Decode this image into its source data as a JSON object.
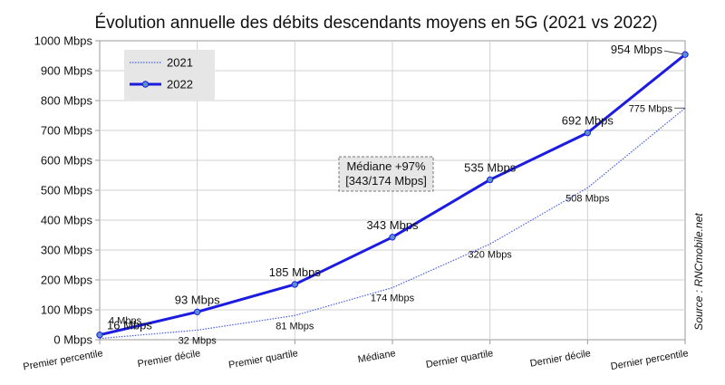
{
  "chart_data": {
    "type": "line",
    "title": "Évolution annuelle des débits descendants moyens en 5G (2021 vs 2022)",
    "categories": [
      "Premier percentile",
      "Premier décile",
      "Premier quartile",
      "Médiane",
      "Dernier quartile",
      "Dernier décile",
      "Dernier percentile"
    ],
    "ylim": [
      0,
      1000
    ],
    "yticks": [
      0,
      100,
      200,
      300,
      400,
      500,
      600,
      700,
      800,
      900,
      1000
    ],
    "ytick_labels": [
      "0 Mbps",
      "100 Mbps",
      "200 Mbps",
      "300 Mbps",
      "400 Mbps",
      "500 Mbps",
      "600 Mbps",
      "700 Mbps",
      "800 Mbps",
      "900 Mbps",
      "1000 Mbps"
    ],
    "grid": true,
    "legend_position": "top-left",
    "series": [
      {
        "name": "2021",
        "values": [
          4,
          32,
          81,
          174,
          320,
          508,
          775
        ],
        "labels": [
          "4 Mbps",
          "32 Mbps",
          "81 Mbps",
          "174 Mbps",
          "320 Mbps",
          "508 Mbps",
          "775 Mbps"
        ],
        "color": "#4a5fe0",
        "style": "dotted"
      },
      {
        "name": "2022",
        "values": [
          16,
          93,
          185,
          343,
          535,
          692,
          954
        ],
        "labels": [
          "16 Mbps",
          "93 Mbps",
          "185 Mbps",
          "343 Mbps",
          "535 Mbps",
          "692 Mbps",
          "954 Mbps"
        ],
        "color": "#1c1ce0",
        "style": "solid-markers"
      }
    ],
    "annotation": {
      "line1": "Médiane +97%",
      "line2": "[343/174 Mbps]"
    },
    "source": "Source : RNCmobile.net"
  }
}
